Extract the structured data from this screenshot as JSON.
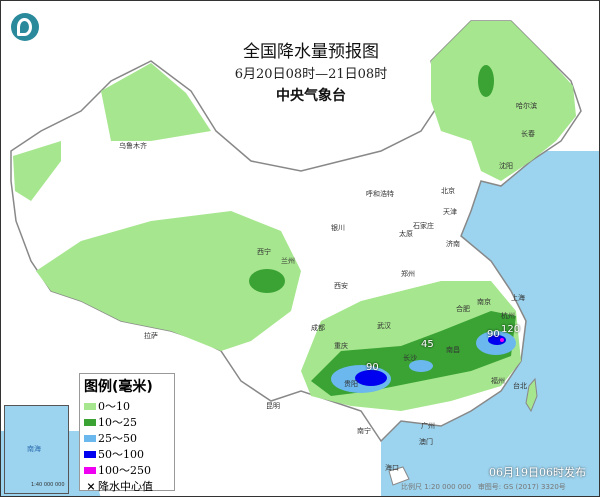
{
  "header": {
    "title": "全国降水量预报图",
    "period": "6月20日08时—21日08时",
    "agency": "中央气象台"
  },
  "legend": {
    "title": "图例(毫米)",
    "items": [
      {
        "label": "0～10",
        "color": "#a6e68e"
      },
      {
        "label": "10～25",
        "color": "#3aa334"
      },
      {
        "label": "25～50",
        "color": "#6ab8ee"
      },
      {
        "label": "50～100",
        "color": "#0000f0"
      },
      {
        "label": "100～250",
        "color": "#f000f0"
      }
    ],
    "center_label": "降水中心值"
  },
  "rain_centers": [
    {
      "value": "90",
      "place": "贵阳"
    },
    {
      "value": "45",
      "place": "长沙"
    },
    {
      "value": "90",
      "place": "杭州"
    },
    {
      "value": "120",
      "place": "杭州"
    }
  ],
  "cities": [
    "乌鲁木齐",
    "哈尔滨",
    "长春",
    "沈阳",
    "呼和浩特",
    "北京",
    "天津",
    "银川",
    "太原",
    "石家庄",
    "济南",
    "西宁",
    "兰州",
    "郑州",
    "西安",
    "合肥",
    "南京",
    "上海",
    "杭州",
    "武汉",
    "成都",
    "重庆",
    "长沙",
    "南昌",
    "贵阳",
    "福州",
    "拉萨",
    "昆明",
    "南宁",
    "广州",
    "澳门",
    "台北",
    "海口"
  ],
  "inset": {
    "label": "南海",
    "scale": "1:40 000 000"
  },
  "footer": {
    "issued": "06月19日06时发布",
    "scale": "比例尺 1:20 000 000",
    "map_no": "审图号: GS (2017) 3320号"
  },
  "colors": {
    "sea": "#9cd3ee",
    "land": "#ffffff",
    "border": "#999999"
  }
}
